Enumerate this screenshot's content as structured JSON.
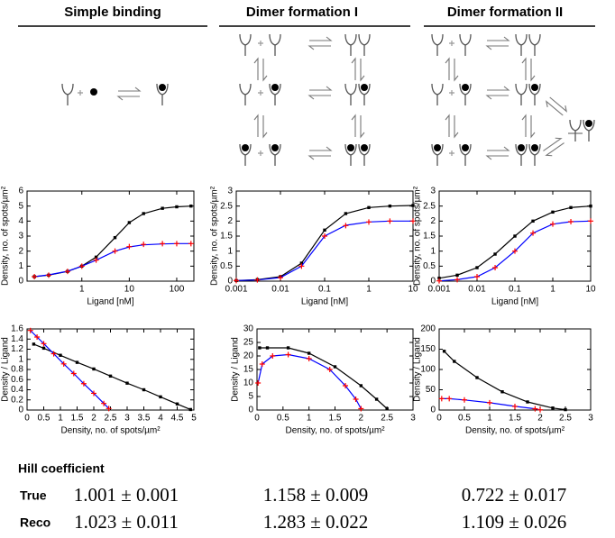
{
  "columns": [
    "Simple binding",
    "Dimer formation I",
    "Dimer formation II"
  ],
  "chart_data": [
    {
      "type": "line",
      "log_x": true,
      "xlabel": "Ligand [nM]",
      "ylabel": "Density, no. of spots/µm²",
      "xlim": [
        0.07,
        230
      ],
      "ylim": [
        0,
        6
      ],
      "xticks": [
        1,
        10,
        100
      ],
      "yticks": [
        0,
        1,
        2,
        3,
        4,
        5,
        6
      ],
      "x": [
        0.1,
        0.2,
        0.5,
        1,
        2,
        5,
        10,
        20,
        50,
        100,
        200
      ],
      "series": [
        {
          "color": "#000000",
          "style": "line-markers",
          "values": [
            0.3,
            0.4,
            0.65,
            1.0,
            1.6,
            2.9,
            3.9,
            4.5,
            4.85,
            4.95,
            5.0
          ]
        },
        {
          "color": "#0000ff",
          "style": "line",
          "values": [
            0.3,
            0.42,
            0.66,
            1.0,
            1.4,
            2.0,
            2.28,
            2.42,
            2.48,
            2.5,
            2.5
          ]
        },
        {
          "color": "#ff0000",
          "style": "markers",
          "values": [
            0.3,
            0.4,
            0.65,
            1.0,
            1.4,
            2.0,
            2.3,
            2.45,
            2.5,
            2.5,
            2.5
          ]
        }
      ]
    },
    {
      "type": "line",
      "log_x": true,
      "xlabel": "Ligand [nM]",
      "ylabel": "Density, no. of spots/µm²",
      "xlim": [
        0.001,
        10
      ],
      "ylim": [
        0,
        3
      ],
      "xticks": [
        0.001,
        0.01,
        0.1,
        1,
        10
      ],
      "yticks": [
        0,
        0.5,
        1,
        1.5,
        2,
        2.5,
        3
      ],
      "x": [
        0.001,
        0.003,
        0.01,
        0.03,
        0.1,
        0.3,
        1,
        3,
        10
      ],
      "series": [
        {
          "color": "#000000",
          "style": "line-markers",
          "values": [
            0.02,
            0.05,
            0.15,
            0.6,
            1.7,
            2.25,
            2.45,
            2.5,
            2.52
          ]
        },
        {
          "color": "#0000ff",
          "style": "line",
          "values": [
            0.02,
            0.04,
            0.12,
            0.5,
            1.5,
            1.86,
            1.97,
            2.0,
            2.0
          ]
        },
        {
          "color": "#ff0000",
          "style": "markers",
          "values": [
            0.02,
            0.04,
            0.12,
            0.5,
            1.5,
            1.85,
            1.97,
            2.0,
            2.0
          ]
        }
      ]
    },
    {
      "type": "line",
      "log_x": true,
      "xlabel": "Ligand [nM]",
      "ylabel": "Density, no. of spots/µm²",
      "xlim": [
        0.001,
        10
      ],
      "ylim": [
        0,
        3
      ],
      "xticks": [
        0.001,
        0.01,
        0.1,
        1,
        10
      ],
      "yticks": [
        0,
        0.5,
        1,
        1.5,
        2,
        2.5,
        3
      ],
      "x": [
        0.001,
        0.003,
        0.01,
        0.03,
        0.1,
        0.3,
        1,
        3,
        10
      ],
      "series": [
        {
          "color": "#000000",
          "style": "line-markers",
          "values": [
            0.1,
            0.2,
            0.45,
            0.9,
            1.5,
            2.0,
            2.3,
            2.45,
            2.5
          ]
        },
        {
          "color": "#0000ff",
          "style": "line",
          "values": [
            0.01,
            0.05,
            0.15,
            0.45,
            1.0,
            1.6,
            1.9,
            1.98,
            2.0
          ]
        },
        {
          "color": "#ff0000",
          "style": "markers",
          "values": [
            0.01,
            0.05,
            0.15,
            0.45,
            1.0,
            1.6,
            1.9,
            1.98,
            2.0
          ]
        }
      ]
    },
    {
      "type": "line",
      "log_x": false,
      "xlabel": "Density, no. of spots/µm²",
      "ylabel": "Density / Ligand",
      "xlim": [
        0,
        5
      ],
      "ylim": [
        0,
        1.6
      ],
      "xticks": [
        0,
        0.5,
        1,
        1.5,
        2,
        2.5,
        3,
        3.5,
        4,
        4.5,
        5
      ],
      "yticks": [
        0,
        0.2,
        0.4,
        0.6,
        0.8,
        1,
        1.2,
        1.4,
        1.6
      ],
      "series": [
        {
          "color": "#000000",
          "style": "line-markers",
          "x": [
            0.2,
            0.5,
            1,
            1.5,
            2,
            2.5,
            3,
            3.5,
            4,
            4.5,
            4.9
          ],
          "values": [
            1.3,
            1.22,
            1.08,
            0.94,
            0.81,
            0.67,
            0.53,
            0.4,
            0.26,
            0.12,
            0.01
          ]
        },
        {
          "color": "#0000ff",
          "style": "line",
          "x": [
            0.1,
            0.3,
            0.5,
            0.8,
            1.1,
            1.4,
            1.7,
            2.0,
            2.3,
            2.45
          ],
          "values": [
            1.57,
            1.44,
            1.31,
            1.11,
            0.91,
            0.72,
            0.52,
            0.33,
            0.13,
            0.03
          ]
        },
        {
          "color": "#ff0000",
          "style": "markers",
          "x": [
            0.1,
            0.3,
            0.5,
            0.8,
            1.1,
            1.4,
            1.7,
            2.0,
            2.3,
            2.45
          ],
          "values": [
            1.57,
            1.44,
            1.31,
            1.11,
            0.91,
            0.72,
            0.52,
            0.33,
            0.13,
            0.03
          ]
        }
      ]
    },
    {
      "type": "line",
      "log_x": false,
      "xlabel": "Density, no. of spots/µm²",
      "ylabel": "Density / Ligand",
      "xlim": [
        0,
        3
      ],
      "ylim": [
        0,
        30
      ],
      "xticks": [
        0,
        0.5,
        1,
        1.5,
        2,
        2.5,
        3
      ],
      "yticks": [
        0,
        5,
        10,
        15,
        20,
        25,
        30
      ],
      "series": [
        {
          "color": "#000000",
          "style": "line-markers",
          "x": [
            0.05,
            0.2,
            0.6,
            1.0,
            1.5,
            2.0,
            2.3,
            2.5
          ],
          "values": [
            23,
            23,
            23,
            21,
            16,
            9,
            4,
            0.5
          ]
        },
        {
          "color": "#0000ff",
          "style": "line",
          "x": [
            0.02,
            0.1,
            0.3,
            0.6,
            1.0,
            1.4,
            1.7,
            1.9,
            2.0
          ],
          "values": [
            10,
            17,
            20,
            20.5,
            19,
            15,
            9,
            4,
            0.5
          ]
        },
        {
          "color": "#ff0000",
          "style": "markers",
          "x": [
            0.02,
            0.1,
            0.3,
            0.6,
            1.0,
            1.4,
            1.7,
            1.9,
            2.0
          ],
          "values": [
            10,
            17,
            20,
            20.5,
            19,
            15,
            9,
            4,
            0.5
          ]
        }
      ]
    },
    {
      "type": "line",
      "log_x": false,
      "xlabel": "Density, no. of spots/µm²",
      "ylabel": "Density / Ligand",
      "xlim": [
        0,
        3
      ],
      "ylim": [
        0,
        200
      ],
      "xticks": [
        0,
        0.5,
        1,
        1.5,
        2,
        2.5,
        3
      ],
      "yticks": [
        0,
        50,
        100,
        150,
        200
      ],
      "series": [
        {
          "color": "#000000",
          "style": "line-markers",
          "x": [
            0.1,
            0.3,
            0.75,
            1.25,
            1.75,
            2.25,
            2.5
          ],
          "values": [
            145,
            120,
            80,
            45,
            20,
            5,
            1
          ]
        },
        {
          "color": "#0000ff",
          "style": "line",
          "x": [
            0.05,
            0.2,
            0.5,
            1.0,
            1.5,
            1.9,
            2.0
          ],
          "values": [
            28,
            28,
            25,
            18,
            9,
            3,
            0.5
          ]
        },
        {
          "color": "#ff0000",
          "style": "markers",
          "x": [
            0.05,
            0.2,
            0.5,
            1.0,
            1.5,
            1.9,
            2.0
          ],
          "values": [
            28,
            28,
            25,
            18,
            9,
            3,
            0.5
          ]
        }
      ]
    }
  ],
  "hill": {
    "title": "Hill coefficient",
    "rows": [
      {
        "label": "True",
        "values": [
          "1.001 ± 0.001",
          "1.158 ± 0.009",
          "0.722 ± 0.017"
        ]
      },
      {
        "label": "Reco",
        "values": [
          "1.023 ± 0.011",
          "1.283 ± 0.022",
          "1.109 ± 0.026"
        ]
      }
    ]
  }
}
